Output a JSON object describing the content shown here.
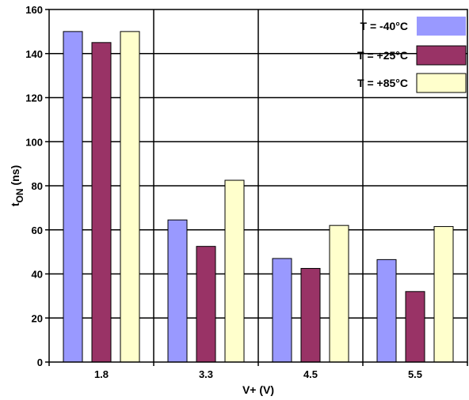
{
  "chart_data": {
    "type": "bar",
    "categories": [
      "1.8",
      "3.3",
      "4.5",
      "5.5"
    ],
    "series": [
      {
        "name": "T = -40°C",
        "values": [
          150,
          64.5,
          47,
          46.5
        ],
        "color": "#9999ff"
      },
      {
        "name": "T = +25°C",
        "values": [
          145,
          52.5,
          42.5,
          32
        ],
        "color": "#993366"
      },
      {
        "name": "T = +85°C",
        "values": [
          150,
          82.5,
          62,
          61.5
        ],
        "color": "#ffffcc"
      }
    ],
    "xlabel": "V+ (V)",
    "ylabel": {
      "main": "t",
      "sub": "ON",
      "suffix": " (ns)"
    },
    "ylim": [
      0,
      160
    ],
    "yticks": [
      "0",
      "20",
      "40",
      "60",
      "80",
      "100",
      "120",
      "140",
      "160"
    ],
    "grid": true,
    "legend_position": "top-right"
  }
}
